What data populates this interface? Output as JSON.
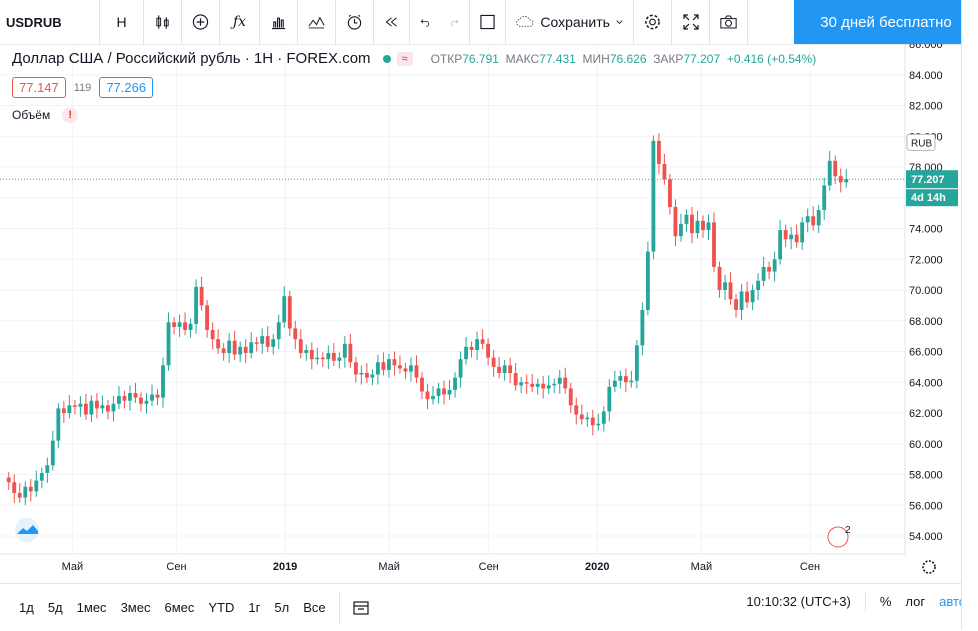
{
  "toolbar": {
    "symbol": "USDRUB",
    "interval": "H",
    "save_label": "Сохранить",
    "promo_label": "30 дней бесплатно"
  },
  "legend": {
    "title": "Доллар США / Российский рубль · 1H · FOREX.com",
    "open_label": "ОТКР",
    "open": "76.791",
    "high_label": "МАКС",
    "high": "77.431",
    "low_label": "МИН",
    "low": "76.626",
    "close_label": "ЗАКР",
    "close": "77.207",
    "change": "+0.416 (+0.54%)"
  },
  "quote": {
    "bid": "77.147",
    "spread": "119",
    "ask": "77.266"
  },
  "volume": {
    "label": "Объём",
    "warning": "!"
  },
  "price_axis": {
    "currency": "RUB",
    "ticks": [
      "86.000",
      "84.000",
      "82.000",
      "80.000",
      "78.000",
      "76.000",
      "74.000",
      "72.000",
      "70.000",
      "68.000",
      "66.000",
      "64.000",
      "62.000",
      "60.000",
      "58.000",
      "56.000",
      "54.000"
    ],
    "last_price": "77.207",
    "countdown": "4d 14h"
  },
  "time_axis": {
    "labels": [
      "Май",
      "Сен",
      "2019",
      "Май",
      "Сен",
      "2020",
      "Май",
      "Сен"
    ],
    "bold": [
      false,
      false,
      true,
      false,
      false,
      true,
      false,
      false
    ]
  },
  "bottom": {
    "timeframes": [
      "1д",
      "5д",
      "1мес",
      "3мес",
      "6мес",
      "YTD",
      "1г",
      "5л",
      "Все"
    ],
    "clock": "10:10:32 (UTC+3)",
    "percent": "%",
    "log": "лог",
    "auto": "авто"
  },
  "colors": {
    "up": "#26a69a",
    "down": "#ef5350",
    "accent": "#2196f3"
  },
  "icons": [
    "bar-style-icon",
    "indicator-add-icon",
    "fx-icon",
    "templates-icon",
    "compare-icon",
    "alert-icon",
    "replay-icon",
    "undo-icon",
    "redo-icon",
    "layout-icon",
    "settings-icon",
    "fullscreen-icon",
    "camera-icon",
    "date-range-icon"
  ],
  "chart_data": {
    "type": "candlestick",
    "y_range": [
      54,
      86
    ],
    "x_ticks": [
      "Май",
      "Сен",
      "2019",
      "Май",
      "Сен",
      "2020",
      "Май",
      "Сен"
    ],
    "close_series": [
      57.5,
      56.8,
      56.5,
      57.2,
      56.9,
      57.6,
      58.1,
      58.6,
      60.2,
      62.3,
      62.0,
      62.5,
      62.4,
      62.6,
      61.9,
      62.8,
      62.3,
      62.5,
      62.1,
      62.6,
      63.1,
      62.8,
      63.3,
      63.0,
      62.6,
      62.8,
      63.2,
      63.0,
      65.1,
      67.9,
      67.6,
      67.9,
      67.4,
      67.8,
      70.2,
      69.0,
      67.4,
      66.8,
      66.2,
      65.9,
      66.7,
      65.8,
      66.3,
      65.9,
      66.6,
      66.5,
      67.0,
      66.3,
      66.8,
      67.9,
      69.6,
      67.5,
      66.8,
      65.9,
      66.1,
      65.5,
      65.6,
      65.5,
      65.9,
      65.4,
      65.6,
      66.5,
      65.3,
      64.5,
      64.6,
      64.3,
      64.5,
      65.3,
      64.8,
      65.5,
      65.1,
      64.9,
      64.7,
      65.1,
      64.3,
      63.4,
      62.9,
      63.1,
      63.6,
      63.2,
      63.5,
      64.3,
      65.5,
      66.3,
      66.1,
      66.8,
      66.5,
      65.6,
      65.0,
      64.6,
      65.1,
      64.6,
      63.8,
      64.0,
      63.9,
      63.7,
      63.9,
      63.6,
      63.8,
      63.9,
      64.3,
      63.6,
      62.5,
      61.9,
      61.6,
      61.7,
      61.2,
      61.3,
      62.1,
      63.7,
      64.1,
      64.4,
      64.0,
      64.1,
      66.4,
      68.7,
      72.5,
      79.7,
      78.2,
      77.2,
      75.4,
      73.5,
      74.3,
      74.9,
      73.7,
      74.5,
      73.9,
      74.4,
      71.5,
      70.0,
      70.5,
      69.4,
      68.7,
      69.9,
      69.2,
      70.0,
      70.6,
      71.5,
      71.2,
      72.0,
      73.9,
      73.3,
      73.6,
      73.1,
      74.4,
      74.8,
      74.2,
      75.2,
      76.8,
      78.4,
      77.4,
      77.0,
      77.21
    ]
  }
}
